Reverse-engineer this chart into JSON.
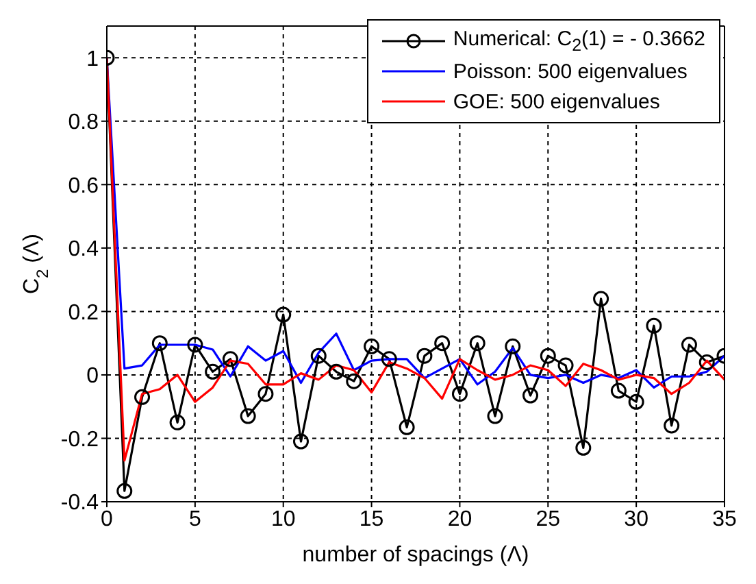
{
  "chart_data": {
    "type": "line",
    "xlabel": "number of spacings (Λ)",
    "ylabel": "C$_{2}$ (Λ)",
    "x": [
      0,
      1,
      2,
      3,
      4,
      5,
      6,
      7,
      8,
      9,
      10,
      11,
      12,
      13,
      14,
      15,
      16,
      17,
      18,
      19,
      20,
      21,
      22,
      23,
      24,
      25,
      26,
      27,
      28,
      29,
      30,
      31,
      32,
      33,
      34,
      35
    ],
    "series": [
      {
        "name": "Numerical: C$_{2}$(1) = - 0.3662",
        "color": "#000000",
        "marker": "circle",
        "values": [
          1,
          -0.366,
          -0.07,
          0.1,
          -0.15,
          0.095,
          0.01,
          0.05,
          -0.13,
          -0.06,
          0.19,
          -0.21,
          0.06,
          0.01,
          -0.02,
          0.09,
          0.05,
          -0.165,
          0.06,
          0.1,
          -0.06,
          0.1,
          -0.13,
          0.09,
          -0.065,
          0.06,
          0.03,
          -0.23,
          0.24,
          -0.05,
          -0.085,
          0.155,
          -0.16,
          0.095,
          0.04,
          0.06
        ]
      },
      {
        "name": "Poisson: 500 eigenvalues",
        "color": "#0000ff",
        "values": [
          1,
          0.02,
          0.03,
          0.095,
          0.095,
          0.095,
          0.08,
          -0.005,
          0.09,
          0.045,
          0.075,
          -0.025,
          0.07,
          0.13,
          0.015,
          0.045,
          0.05,
          0.05,
          -0.01,
          0.02,
          0.05,
          -0.03,
          0.01,
          0.085,
          0.0,
          -0.01,
          0.0,
          -0.025,
          0.0,
          -0.01,
          0.015,
          -0.04,
          -0.005,
          -0.005,
          0.01,
          0.06
        ]
      },
      {
        "name": "GOE: 500 eigenvalues",
        "color": "#ff0000",
        "values": [
          1,
          -0.27,
          -0.06,
          -0.045,
          0.0,
          -0.085,
          -0.04,
          0.045,
          0.035,
          -0.03,
          -0.03,
          0.005,
          -0.015,
          0.03,
          0.015,
          -0.055,
          0.04,
          0.02,
          -0.01,
          -0.075,
          0.05,
          0.015,
          -0.015,
          0.0,
          0.03,
          0.015,
          -0.035,
          0.035,
          0.015,
          -0.015,
          0.0,
          -0.01,
          -0.06,
          -0.025,
          0.045,
          -0.015
        ]
      }
    ],
    "xlim": [
      0,
      35
    ],
    "xticks": [
      0,
      5,
      10,
      15,
      20,
      25,
      30,
      35
    ],
    "ylim": [
      -0.4,
      1.1
    ],
    "yticks": [
      -0.4,
      -0.2,
      0,
      0.2,
      0.4,
      0.6,
      0.8,
      1
    ],
    "grid": true,
    "legend": "top right",
    "line_style": "solid"
  }
}
